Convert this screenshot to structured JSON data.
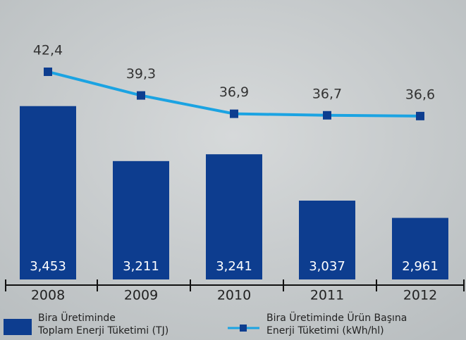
{
  "chart_data": {
    "type": "bar",
    "categories": [
      "2008",
      "2009",
      "2010",
      "2011",
      "2012"
    ],
    "ylim": [
      2690,
      3920
    ],
    "y2lim": [
      15.2,
      51.8
    ],
    "series": [
      {
        "name": [
          "Bira Üretiminde",
          "Toplam Enerji Tüketimi (TJ)"
        ],
        "type": "bar",
        "color": "#0d3d8f",
        "values": [
          3453,
          3211,
          3241,
          3037,
          2961
        ],
        "value_labels": [
          "3,453",
          "3,211",
          "3,241",
          "3,037",
          "2,961"
        ]
      },
      {
        "name": [
          "Bira Üretiminde Ürün Başına",
          "Enerji Tüketimi (kWh/hl)"
        ],
        "type": "line",
        "axis": "y2",
        "color": "#1ba3e2",
        "marker_color": "#0d3d8f",
        "values": [
          42.4,
          39.3,
          36.9,
          36.7,
          36.6
        ],
        "value_labels": [
          "42,4",
          "39,3",
          "36,9",
          "36,7",
          "36,6"
        ]
      }
    ]
  }
}
